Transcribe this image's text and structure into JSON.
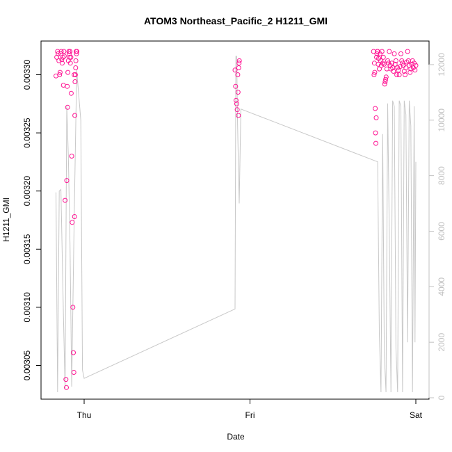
{
  "chart_data": {
    "type": "scatter",
    "title": "ATOM3 Northeast_Pacific_2 H1211_GMI",
    "xlabel": "Date",
    "ylabel": "H1211_GMI",
    "x_ticks": [
      "Thu",
      "Fri",
      "Sat"
    ],
    "ylim": [
      0.003021,
      0.003329
    ],
    "y_ticks": [
      "0.00305",
      "0.00310",
      "0.00315",
      "0.00320",
      "0.00325",
      "0.00330"
    ],
    "y2lim": [
      -50,
      12850
    ],
    "y2_ticks": [
      "0",
      "2000",
      "4000",
      "6000",
      "8000",
      "10000",
      "12000"
    ],
    "grid": false,
    "point_color": "#ff1493",
    "line_color": "#c8c8c8",
    "right_axis_color": "#c0c0c0",
    "series": [
      {
        "kind": "points",
        "axis": "left",
        "x_unit": "days since Thu 00:00",
        "points": [
          [
            -0.17,
            0.003299
          ],
          [
            -0.165,
            0.003315
          ],
          [
            -0.16,
            0.00332
          ],
          [
            -0.157,
            0.003318
          ],
          [
            -0.152,
            0.003312
          ],
          [
            -0.148,
            0.0033
          ],
          [
            -0.145,
            0.003302
          ],
          [
            -0.14,
            0.003318
          ],
          [
            -0.138,
            0.00332
          ],
          [
            -0.135,
            0.003313
          ],
          [
            -0.132,
            0.00331
          ],
          [
            -0.128,
            0.003315
          ],
          [
            -0.125,
            0.003291
          ],
          [
            -0.122,
            0.00332
          ],
          [
            -0.12,
            0.003316
          ],
          [
            -0.115,
            0.003192
          ],
          [
            -0.11,
            0.003038
          ],
          [
            -0.107,
            0.003031
          ],
          [
            -0.105,
            0.003209
          ],
          [
            -0.102,
            0.00329
          ],
          [
            -0.1,
            0.003272
          ],
          [
            -0.098,
            0.003302
          ],
          [
            -0.095,
            0.003312
          ],
          [
            -0.092,
            0.00332
          ],
          [
            -0.09,
            0.003318
          ],
          [
            -0.087,
            0.003315
          ],
          [
            -0.085,
            0.00332
          ],
          [
            -0.083,
            0.00331
          ],
          [
            -0.08,
            0.003315
          ],
          [
            -0.078,
            0.003284
          ],
          [
            -0.075,
            0.00323
          ],
          [
            -0.072,
            0.003173
          ],
          [
            -0.068,
            0.0031
          ],
          [
            -0.065,
            0.003061
          ],
          [
            -0.062,
            0.003044
          ],
          [
            -0.06,
            0.0033
          ],
          [
            -0.058,
            0.003178
          ],
          [
            -0.056,
            0.003265
          ],
          [
            -0.055,
            0.003294
          ],
          [
            -0.053,
            0.0033
          ],
          [
            -0.051,
            0.003306
          ],
          [
            -0.05,
            0.003312
          ],
          [
            -0.048,
            0.00332
          ],
          [
            -0.046,
            0.003318
          ],
          [
            -0.044,
            0.00332
          ],
          [
            0.91,
            0.003304
          ],
          [
            0.913,
            0.00329
          ],
          [
            0.916,
            0.003278
          ],
          [
            0.92,
            0.003275
          ],
          [
            0.923,
            0.00327
          ],
          [
            0.926,
            0.0033
          ],
          [
            0.928,
            0.003285
          ],
          [
            0.93,
            0.003265
          ],
          [
            0.932,
            0.003306
          ],
          [
            0.934,
            0.00331
          ],
          [
            0.936,
            0.003312
          ],
          [
            1.745,
            0.00332
          ],
          [
            1.748,
            0.0033
          ],
          [
            1.75,
            0.00331
          ],
          [
            1.752,
            0.003302
          ],
          [
            1.755,
            0.003271
          ],
          [
            1.757,
            0.00325
          ],
          [
            1.759,
            0.003241
          ],
          [
            1.761,
            0.003263
          ],
          [
            1.763,
            0.003315
          ],
          [
            1.765,
            0.003318
          ],
          [
            1.768,
            0.00332
          ],
          [
            1.77,
            0.00332
          ],
          [
            1.773,
            0.003309
          ],
          [
            1.776,
            0.003314
          ],
          [
            1.78,
            0.003305
          ],
          [
            1.784,
            0.003318
          ],
          [
            1.788,
            0.003312
          ],
          [
            1.792,
            0.003308
          ],
          [
            1.796,
            0.00332
          ],
          [
            1.8,
            0.00331
          ],
          [
            1.804,
            0.003315
          ],
          [
            1.808,
            0.003309
          ],
          [
            1.812,
            0.003292
          ],
          [
            1.815,
            0.003294
          ],
          [
            1.818,
            0.003296
          ],
          [
            1.821,
            0.003298
          ],
          [
            1.825,
            0.003305
          ],
          [
            1.83,
            0.003312
          ],
          [
            1.835,
            0.00331
          ],
          [
            1.84,
            0.00332
          ],
          [
            1.845,
            0.003308
          ],
          [
            1.85,
            0.003305
          ],
          [
            1.855,
            0.00331
          ],
          [
            1.86,
            0.003306
          ],
          [
            1.865,
            0.003303
          ],
          [
            1.87,
            0.003318
          ],
          [
            1.875,
            0.003309
          ],
          [
            1.88,
            0.003312
          ],
          [
            1.885,
            0.0033
          ],
          [
            1.89,
            0.003306
          ],
          [
            1.895,
            0.003304
          ],
          [
            1.9,
            0.0033
          ],
          [
            1.905,
            0.003307
          ],
          [
            1.91,
            0.003318
          ],
          [
            1.915,
            0.003312
          ],
          [
            1.92,
            0.00331
          ],
          [
            1.925,
            0.003308
          ],
          [
            1.93,
            0.003303
          ],
          [
            1.935,
            0.0033
          ],
          [
            1.94,
            0.003306
          ],
          [
            1.945,
            0.003311
          ],
          [
            1.95,
            0.00332
          ],
          [
            1.955,
            0.003312
          ],
          [
            1.96,
            0.003308
          ],
          [
            1.965,
            0.003302
          ],
          [
            1.97,
            0.003305
          ],
          [
            1.975,
            0.003309
          ],
          [
            1.98,
            0.003312
          ],
          [
            1.985,
            0.003306
          ],
          [
            1.99,
            0.00331
          ],
          [
            1.995,
            0.003304
          ],
          [
            2.0,
            0.003308
          ]
        ]
      },
      {
        "kind": "line",
        "axis": "right",
        "x_unit": "days since Thu 00:00",
        "points": [
          [
            -0.17,
            7400
          ],
          [
            -0.16,
            200
          ],
          [
            -0.15,
            7450
          ],
          [
            -0.14,
            7500
          ],
          [
            -0.125,
            3000
          ],
          [
            -0.115,
            300
          ],
          [
            -0.105,
            10500
          ],
          [
            -0.095,
            8700
          ],
          [
            -0.085,
            5500
          ],
          [
            -0.075,
            400
          ],
          [
            -0.06,
            6500
          ],
          [
            -0.045,
            11800
          ],
          [
            -0.02,
            10000
          ],
          [
            -0.01,
            1000
          ],
          [
            0.0,
            700
          ],
          [
            0.91,
            3200
          ],
          [
            0.915,
            12300
          ],
          [
            0.92,
            12300
          ],
          [
            0.925,
            9900
          ],
          [
            0.935,
            7000
          ],
          [
            0.945,
            10400
          ],
          [
            1.77,
            8500
          ],
          [
            1.78,
            2300
          ],
          [
            1.79,
            200
          ],
          [
            1.8,
            9500
          ],
          [
            1.81,
            1500
          ],
          [
            1.82,
            200
          ],
          [
            1.83,
            10600
          ],
          [
            1.84,
            6000
          ],
          [
            1.85,
            200
          ],
          [
            1.86,
            10700
          ],
          [
            1.87,
            10500
          ],
          [
            1.88,
            1800
          ],
          [
            1.89,
            200
          ],
          [
            1.9,
            10700
          ],
          [
            1.91,
            10500
          ],
          [
            1.92,
            200
          ],
          [
            1.93,
            10700
          ],
          [
            1.94,
            10200
          ],
          [
            1.95,
            2000
          ],
          [
            1.96,
            10700
          ],
          [
            1.97,
            9800
          ],
          [
            1.98,
            200
          ],
          [
            1.99,
            10500
          ],
          [
            1.995,
            2000
          ],
          [
            2.0,
            8500
          ]
        ]
      }
    ]
  }
}
